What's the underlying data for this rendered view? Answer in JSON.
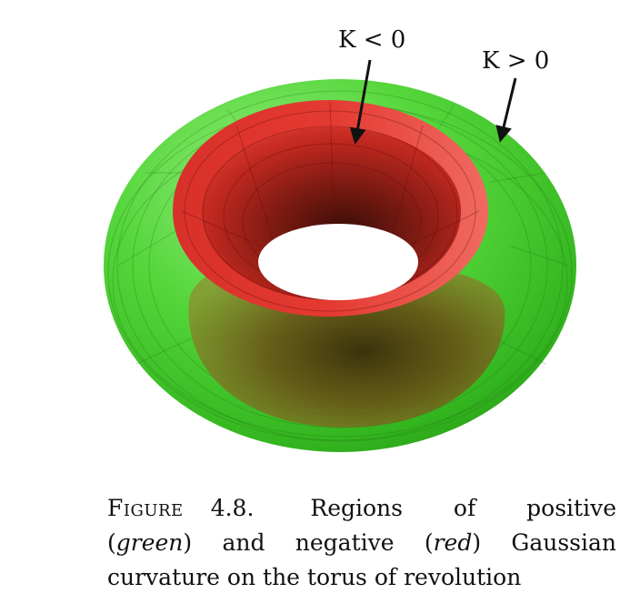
{
  "figure": {
    "label_negative": "K < 0",
    "label_positive": "K > 0",
    "colors": {
      "positive_region": "#3fcf2a",
      "negative_region": "#d42a28",
      "arrow": "#111111"
    }
  },
  "caption": {
    "figure_word": "Figure",
    "figure_number": "4.8.",
    "line1_text": "Regions of positive",
    "green_word": "green",
    "line2_mid": "and negative",
    "red_word": "red",
    "line2_end": "Gaussian",
    "line3": "curvature on the torus of revolution"
  }
}
